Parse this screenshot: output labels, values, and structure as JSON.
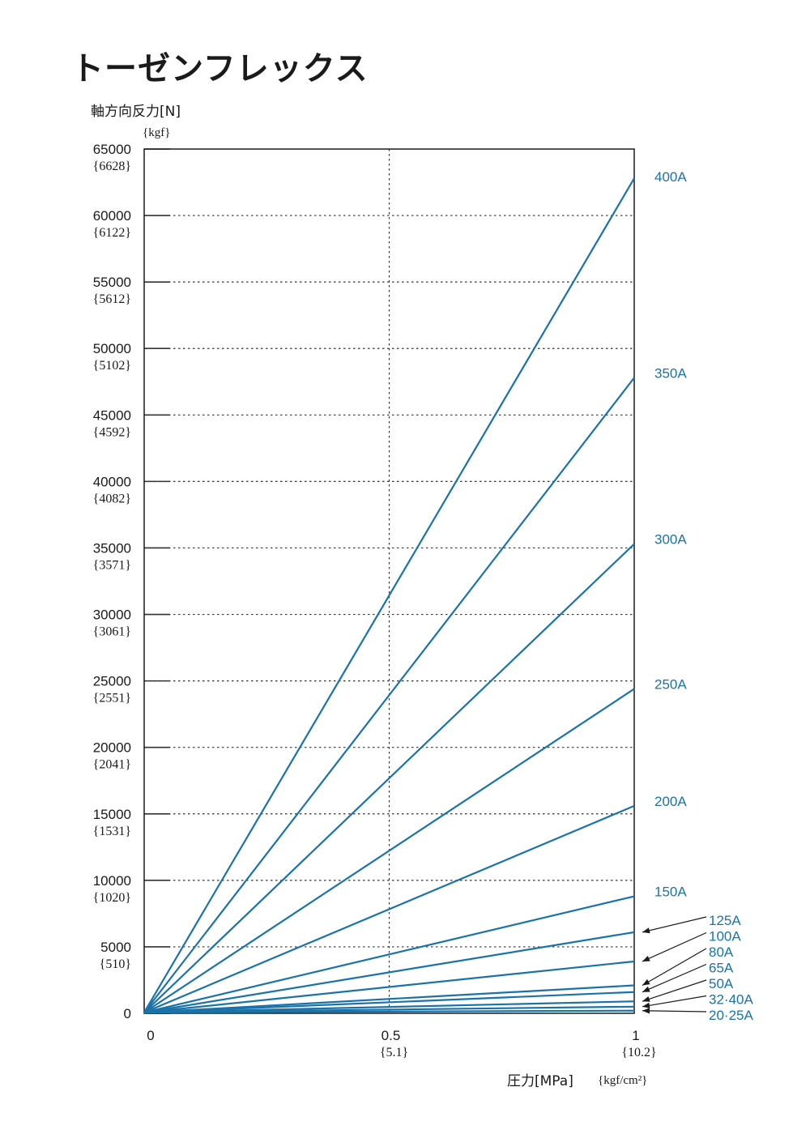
{
  "title": "トーゼンフレックス",
  "chart_data": {
    "type": "line",
    "title": "トーゼンフレックス",
    "xlabel": "圧力[MPa]",
    "xlabel_sub": "{kgf/cm²}",
    "ylabel": "軸方向反力[N]",
    "ylabel_sub": "{kgf}",
    "xlim": [
      0,
      1
    ],
    "ylim": [
      0,
      65000
    ],
    "grid": true,
    "line_color": "#1a73a8",
    "x_ticks": [
      {
        "value": 0,
        "label": "0",
        "sub": ""
      },
      {
        "value": 0.5,
        "label": "0.5",
        "sub": "{5.1}"
      },
      {
        "value": 1,
        "label": "1",
        "sub": "{10.2}"
      }
    ],
    "y_ticks": [
      {
        "value": 0,
        "label": "0",
        "sub": ""
      },
      {
        "value": 5000,
        "label": "5000",
        "sub": "{510}"
      },
      {
        "value": 10000,
        "label": "10000",
        "sub": "{1020}"
      },
      {
        "value": 15000,
        "label": "15000",
        "sub": "{1531}"
      },
      {
        "value": 20000,
        "label": "20000",
        "sub": "{2041}"
      },
      {
        "value": 25000,
        "label": "25000",
        "sub": "{2551}"
      },
      {
        "value": 30000,
        "label": "30000",
        "sub": "{3061}"
      },
      {
        "value": 35000,
        "label": "35000",
        "sub": "{3571}"
      },
      {
        "value": 40000,
        "label": "40000",
        "sub": "{4082}"
      },
      {
        "value": 45000,
        "label": "45000",
        "sub": "{4592}"
      },
      {
        "value": 50000,
        "label": "50000",
        "sub": "{5102}"
      },
      {
        "value": 55000,
        "label": "55000",
        "sub": "{5612}"
      },
      {
        "value": 60000,
        "label": "60000",
        "sub": "{6122}"
      },
      {
        "value": 65000,
        "label": "65000",
        "sub": "{6628}"
      }
    ],
    "series": [
      {
        "name": "400A",
        "x": [
          0,
          1
        ],
        "values": [
          0,
          62800
        ]
      },
      {
        "name": "350A",
        "x": [
          0,
          1
        ],
        "values": [
          0,
          47800
        ]
      },
      {
        "name": "300A",
        "x": [
          0,
          1
        ],
        "values": [
          0,
          35300
        ]
      },
      {
        "name": "250A",
        "x": [
          0,
          1
        ],
        "values": [
          0,
          24400
        ]
      },
      {
        "name": "200A",
        "x": [
          0,
          1
        ],
        "values": [
          0,
          15600
        ]
      },
      {
        "name": "150A",
        "x": [
          0,
          1
        ],
        "values": [
          0,
          8800
        ]
      },
      {
        "name": "125A",
        "x": [
          0,
          1
        ],
        "values": [
          0,
          6100
        ]
      },
      {
        "name": "100A",
        "x": [
          0,
          1
        ],
        "values": [
          0,
          3900
        ]
      },
      {
        "name": "80A",
        "x": [
          0,
          1
        ],
        "values": [
          0,
          2100
        ]
      },
      {
        "name": "65A",
        "x": [
          0,
          1
        ],
        "values": [
          0,
          1600
        ]
      },
      {
        "name": "50A",
        "x": [
          0,
          1
        ],
        "values": [
          0,
          900
        ]
      },
      {
        "name": "32·40A",
        "x": [
          0,
          1
        ],
        "values": [
          0,
          500
        ]
      },
      {
        "name": "20·25A",
        "x": [
          0,
          1
        ],
        "values": [
          0,
          200
        ]
      }
    ]
  }
}
